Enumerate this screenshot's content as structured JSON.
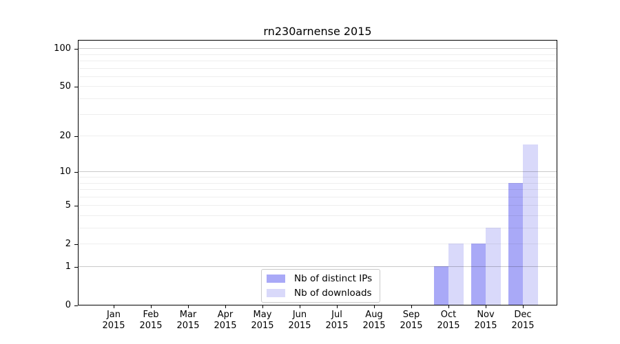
{
  "chart_data": {
    "type": "bar",
    "title": "rn230arnense 2015",
    "categories": [
      "Jan",
      "Feb",
      "Mar",
      "Apr",
      "May",
      "Jun",
      "Jul",
      "Aug",
      "Sep",
      "Oct",
      "Nov",
      "Dec"
    ],
    "year": "2015",
    "series": [
      {
        "key": "distinct-ips",
        "name": "Nb of distinct IPs",
        "color": "#a9a9f7",
        "values": [
          0,
          0,
          0,
          0,
          0,
          0,
          0,
          0,
          0,
          1,
          2,
          8
        ]
      },
      {
        "key": "downloads",
        "name": "Nb of downloads",
        "color": "#d9d9fa",
        "values": [
          0,
          0,
          0,
          0,
          0,
          0,
          0,
          0,
          0,
          2,
          3,
          17
        ]
      }
    ],
    "yscale": "log1p",
    "ylim": [
      0,
      118
    ],
    "yticks": [
      0,
      1,
      2,
      5,
      10,
      20,
      50,
      100
    ],
    "grid": {
      "minor_values": [
        2,
        3,
        4,
        5,
        6,
        7,
        8,
        9,
        20,
        30,
        40,
        50,
        60,
        70,
        80,
        90
      ],
      "major_values": [
        1,
        10,
        100
      ],
      "minor_color": "rgba(0,0,0,0.065)",
      "major_color": "rgba(0,0,0,0.21)",
      "grid_over_bars": true
    },
    "legend_position": "lower center"
  }
}
